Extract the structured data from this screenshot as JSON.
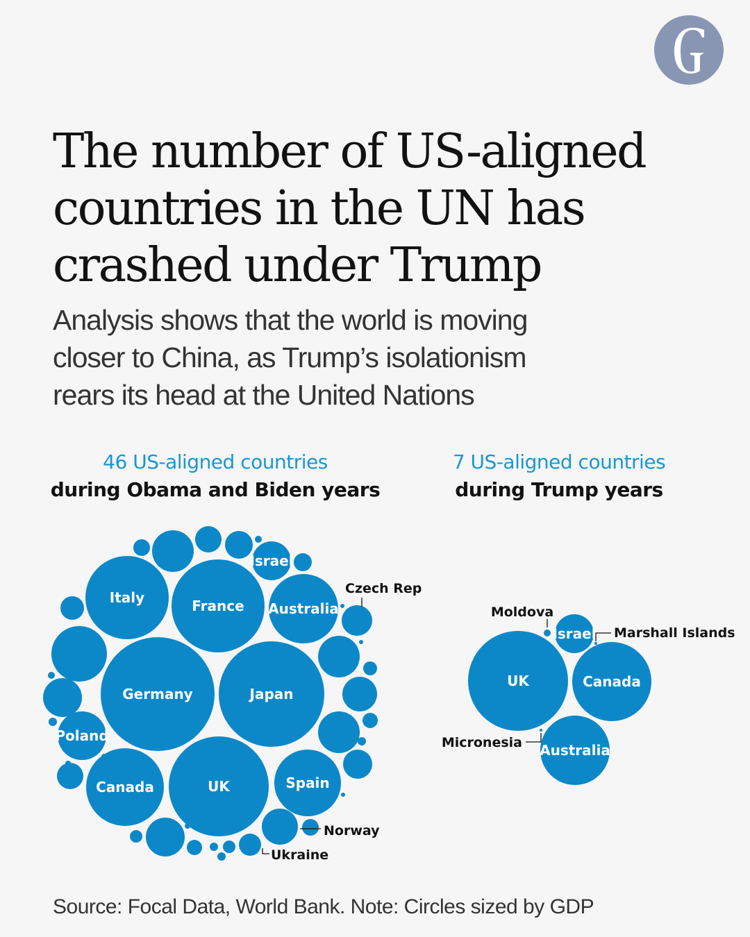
{
  "brand": {
    "logo_icon": "guardian-g-logo-icon",
    "logo_color": "#8896b3"
  },
  "headline": {
    "lines": [
      "The number of US-aligned",
      "countries in the UN has",
      "crashed under Trump"
    ]
  },
  "standfirst": {
    "lines": [
      "Analysis shows that the world is moving",
      "closer to China, as Trump’s isolationism",
      "rears its head at the United Nations"
    ]
  },
  "colors": {
    "bubble": "#0c88c8",
    "accent_text": "#1996d5",
    "text": "#121212"
  },
  "chart_data": [
    {
      "type": "bubble",
      "size_by": "GDP",
      "count_label": "46 US-aligned countries",
      "period_label": "during Obama and Biden years",
      "labeled_countries": [
        "Germany",
        "Japan",
        "UK",
        "France",
        "Italy",
        "Canada",
        "Australia",
        "Spain",
        "Poland",
        "Israel",
        "Czech Rep",
        "Norway",
        "Ukraine"
      ],
      "outside_labels": [
        "Czech Rep",
        "Norway",
        "Ukraine"
      ],
      "total_countries": 46
    },
    {
      "type": "bubble",
      "size_by": "GDP",
      "count_label": "7 US-aligned countries",
      "period_label": "during Trump years",
      "labeled_countries": [
        "UK",
        "Canada",
        "Australia",
        "Israel",
        "Moldova",
        "Marshall Islands",
        "Micronesia"
      ],
      "outside_labels": [
        "Moldova",
        "Marshall Islands",
        "Micronesia"
      ],
      "total_countries": 7
    }
  ],
  "footnote": "Source: Focal Data, World Bank. Note: Circles sized by GDP"
}
